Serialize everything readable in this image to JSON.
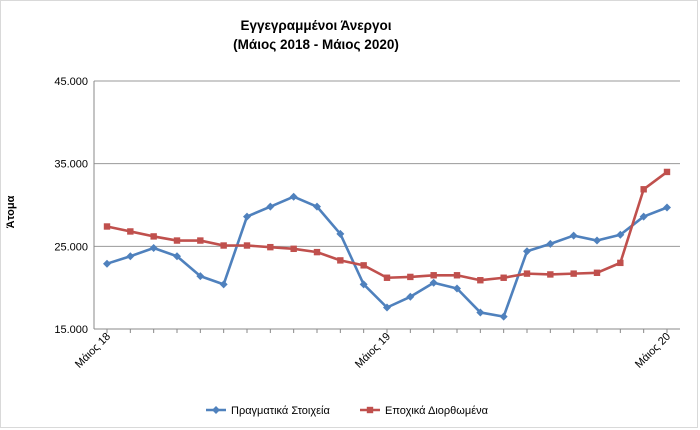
{
  "chart_data": {
    "type": "line",
    "title": "Εγγεγραμμένοι Άνεργοι",
    "subtitle": "(Μάιος 2018 - Μάιος 2020)",
    "xlabel": "",
    "ylabel": "Άτομα",
    "ylim": [
      15000,
      45000
    ],
    "y_ticks": [
      15000,
      25000,
      35000,
      45000
    ],
    "y_tick_labels": [
      "15.000",
      "25.000",
      "35.000",
      "45.000"
    ],
    "x_tick_labels": [
      {
        "index": 0,
        "label": "Μάιος 18"
      },
      {
        "index": 12,
        "label": "Μάιος 19"
      },
      {
        "index": 24,
        "label": "Μάιος 20"
      }
    ],
    "grid": "horizontal",
    "legend_position": "bottom",
    "series": [
      {
        "name": "Πραγματικά Στοιχεία",
        "color": "#4f81bd",
        "marker": "diamond",
        "values": [
          22900,
          23800,
          24800,
          23800,
          21400,
          20400,
          28600,
          29800,
          31000,
          29800,
          26500,
          20400,
          17600,
          18900,
          20600,
          19900,
          17000,
          16500,
          24400,
          25300,
          26300,
          25700,
          26400,
          28600,
          29700
        ]
      },
      {
        "name": "Εποχικά Διορθωμένα",
        "color": "#c0504d",
        "marker": "square",
        "values": [
          27400,
          26800,
          26200,
          25700,
          25700,
          25100,
          25100,
          24900,
          24700,
          24300,
          23300,
          22700,
          21200,
          21300,
          21500,
          21500,
          20900,
          21200,
          21700,
          21600,
          21700,
          21800,
          23000,
          31900,
          34000
        ]
      }
    ]
  }
}
